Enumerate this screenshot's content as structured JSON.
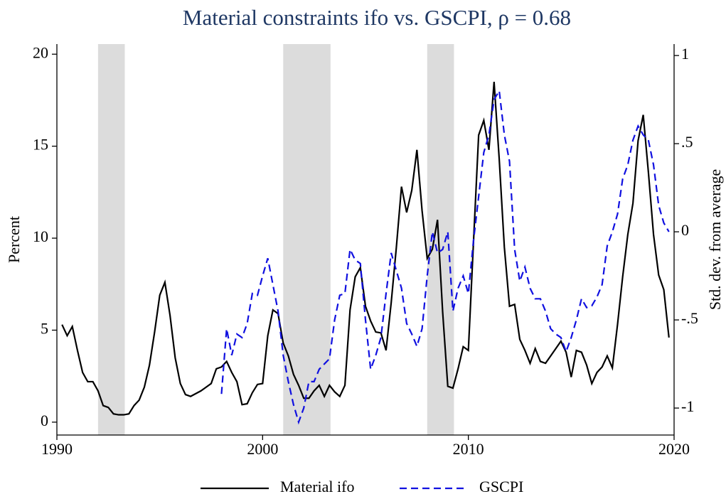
{
  "chart_data": {
    "type": "line",
    "title": "Material constraints ifo vs. GSCPI, ρ = 0.68",
    "ylabel": "Percent",
    "y2label": "Std. dev. from average",
    "xlim": [
      1990,
      2020
    ],
    "xticks": [
      1990,
      2000,
      2010,
      2020
    ],
    "ylim": [
      -0.7,
      20.55
    ],
    "yticks": [
      0,
      5,
      10,
      15,
      20
    ],
    "y2lim": [
      -1.153,
      1.065
    ],
    "y2ticks": [
      -1,
      {
        "value": -0.5,
        "label": "-.5"
      },
      0,
      {
        "value": 0.5,
        "label": ".5"
      },
      1
    ],
    "shaded_regions": [
      [
        1992.0,
        1993.3
      ],
      [
        2001.0,
        2003.3
      ],
      [
        2008.0,
        2009.3
      ]
    ],
    "shade_color": "#dcdcdc",
    "series": [
      {
        "name": "Material ifo",
        "color": "#000000",
        "dash": "solid",
        "x": [
          1990.25,
          1990.5,
          1990.75,
          1991,
          1991.25,
          1991.5,
          1991.75,
          1992,
          1992.25,
          1992.5,
          1992.75,
          1993,
          1993.25,
          1993.5,
          1993.75,
          1994,
          1994.25,
          1994.5,
          1994.75,
          1995,
          1995.25,
          1995.5,
          1995.75,
          1996,
          1996.25,
          1996.5,
          1996.75,
          1997,
          1997.25,
          1997.5,
          1997.75,
          1998,
          1998.25,
          1998.5,
          1998.75,
          1999,
          1999.25,
          1999.5,
          1999.75,
          2000,
          2000.25,
          2000.5,
          2000.75,
          2001,
          2001.25,
          2001.5,
          2001.75,
          2002,
          2002.25,
          2002.5,
          2002.75,
          2003,
          2003.25,
          2003.5,
          2003.75,
          2004,
          2004.25,
          2004.5,
          2004.75,
          2005,
          2005.25,
          2005.5,
          2005.75,
          2006,
          2006.25,
          2006.5,
          2006.75,
          2007,
          2007.25,
          2007.5,
          2007.75,
          2008,
          2008.25,
          2008.5,
          2008.75,
          2009,
          2009.25,
          2009.5,
          2009.75,
          2010,
          2010.25,
          2010.5,
          2010.75,
          2011,
          2011.25,
          2011.5,
          2011.75,
          2012,
          2012.25,
          2012.5,
          2012.75,
          2013,
          2013.25,
          2013.5,
          2013.75,
          2014,
          2014.25,
          2014.5,
          2014.75,
          2015,
          2015.25,
          2015.5,
          2015.75,
          2016,
          2016.25,
          2016.5,
          2016.75,
          2017,
          2017.25,
          2017.5,
          2017.75,
          2018,
          2018.25,
          2018.5,
          2018.75,
          2019,
          2019.25,
          2019.5,
          2019.75
        ],
        "values": [
          5.3,
          4.7,
          5.2,
          3.9,
          2.7,
          2.2,
          2.2,
          1.7,
          0.9,
          0.8,
          0.45,
          0.4,
          0.4,
          0.45,
          0.9,
          1.2,
          1.9,
          3.1,
          4.9,
          6.9,
          7.6,
          5.8,
          3.5,
          2.1,
          1.5,
          1.4,
          1.55,
          1.7,
          1.9,
          2.1,
          2.9,
          3.0,
          3.3,
          2.7,
          2.2,
          0.95,
          1.0,
          1.6,
          2.05,
          2.1,
          4.7,
          6.1,
          5.9,
          4.3,
          3.6,
          2.6,
          2.0,
          1.3,
          1.3,
          1.7,
          2.0,
          1.4,
          2.0,
          1.65,
          1.4,
          2.0,
          6.1,
          7.9,
          8.4,
          6.3,
          5.5,
          4.9,
          4.85,
          3.9,
          6.5,
          9.5,
          12.8,
          11.4,
          12.6,
          14.8,
          11.5,
          8.9,
          9.4,
          11.0,
          6.0,
          1.95,
          1.85,
          2.9,
          4.1,
          3.9,
          9.8,
          15.6,
          16.4,
          14.8,
          18.5,
          14.3,
          9.5,
          6.3,
          6.4,
          4.5,
          3.9,
          3.2,
          4.0,
          3.3,
          3.2,
          3.6,
          4.0,
          4.4,
          3.8,
          2.45,
          3.9,
          3.8,
          3.1,
          2.1,
          2.7,
          3.0,
          3.6,
          2.95,
          5.3,
          7.9,
          10.2,
          11.9,
          15.3,
          16.7,
          13.6,
          10.2,
          8.0,
          7.2,
          4.6
        ]
      },
      {
        "name": "GSCPI",
        "color": "#1010e0",
        "dash": "dashed",
        "axis": "y2",
        "x": [
          1998,
          1998.25,
          1998.5,
          1998.75,
          1999,
          1999.25,
          1999.5,
          1999.75,
          2000,
          2000.25,
          2000.5,
          2000.75,
          2001,
          2001.25,
          2001.5,
          2001.75,
          2002,
          2002.25,
          2002.5,
          2002.75,
          2003,
          2003.25,
          2003.5,
          2003.75,
          2004,
          2004.25,
          2004.5,
          2004.75,
          2005,
          2005.25,
          2005.5,
          2005.75,
          2006,
          2006.25,
          2006.5,
          2006.75,
          2007,
          2007.25,
          2007.5,
          2007.75,
          2008,
          2008.25,
          2008.5,
          2008.75,
          2009,
          2009.25,
          2009.5,
          2009.75,
          2010,
          2010.25,
          2010.5,
          2010.75,
          2011,
          2011.25,
          2011.5,
          2011.75,
          2012,
          2012.25,
          2012.5,
          2012.75,
          2013,
          2013.25,
          2013.5,
          2013.75,
          2014,
          2014.25,
          2014.5,
          2014.75,
          2015,
          2015.25,
          2015.5,
          2015.75,
          2016,
          2016.25,
          2016.5,
          2016.75,
          2017,
          2017.25,
          2017.5,
          2017.75,
          2018,
          2018.25,
          2018.5,
          2018.75,
          2019,
          2019.25,
          2019.5,
          2019.75
        ],
        "values": [
          -0.92,
          -0.55,
          -0.7,
          -0.58,
          -0.6,
          -0.52,
          -0.35,
          -0.36,
          -0.25,
          -0.15,
          -0.3,
          -0.45,
          -0.7,
          -0.85,
          -0.98,
          -1.08,
          -1.0,
          -0.85,
          -0.85,
          -0.78,
          -0.75,
          -0.72,
          -0.5,
          -0.36,
          -0.35,
          -0.1,
          -0.16,
          -0.18,
          -0.5,
          -0.78,
          -0.7,
          -0.6,
          -0.35,
          -0.12,
          -0.22,
          -0.32,
          -0.52,
          -0.58,
          -0.65,
          -0.55,
          -0.25,
          0.0,
          -0.12,
          -0.1,
          0.0,
          -0.45,
          -0.32,
          -0.25,
          -0.35,
          -0.05,
          0.2,
          0.45,
          0.55,
          0.75,
          0.8,
          0.55,
          0.4,
          -0.1,
          -0.28,
          -0.2,
          -0.32,
          -0.38,
          -0.38,
          -0.45,
          -0.55,
          -0.58,
          -0.6,
          -0.68,
          -0.6,
          -0.5,
          -0.38,
          -0.43,
          -0.42,
          -0.37,
          -0.3,
          -0.08,
          0.0,
          0.1,
          0.3,
          0.38,
          0.52,
          0.6,
          0.55,
          0.52,
          0.38,
          0.15,
          0.05,
          0.0
        ]
      }
    ]
  }
}
